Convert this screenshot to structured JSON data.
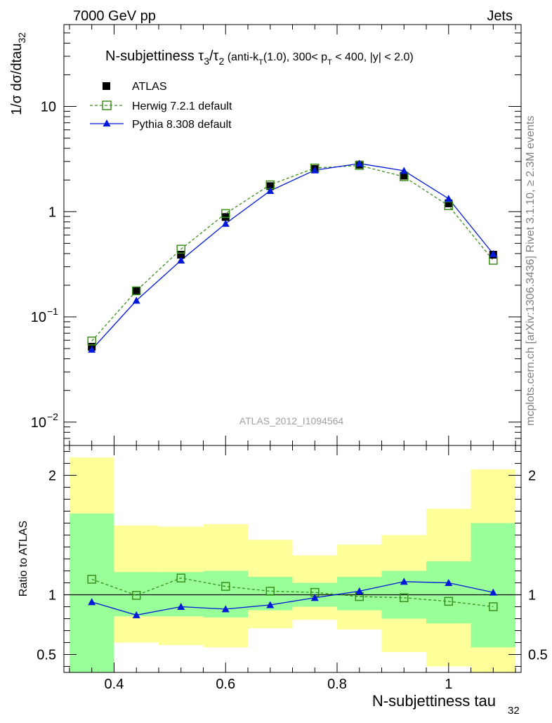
{
  "header": {
    "left": "7000 GeV pp",
    "right": "Jets"
  },
  "side_labels": {
    "rivet": "Rivet 3.1.10, ≥ 2.3M events",
    "mcplots": "mcplots.cern.ch [arXiv:1306.3436]"
  },
  "watermark": "ATLAS_2012_I1094564",
  "main_title": {
    "prefix": "N-subjettiness ",
    "tau": "τ",
    "sub3": "3",
    "slash": "/",
    "sub2": "2",
    "detail_a": " (anti-k",
    "detail_t1": "T",
    "detail_b": "(1.0), 300< p",
    "detail_t2": "T",
    "detail_c": " < 400, |y| < 2.0)"
  },
  "ylabel": {
    "main": "1/σ dσ/dtau",
    "sub": "32"
  },
  "ratio_ylabel": "Ratio to ATLAS",
  "xlabel": {
    "main": "N-subjettiness tau",
    "sub": "32"
  },
  "legend": [
    {
      "name": "ATLAS"
    },
    {
      "name": "Herwig 7.2.1 default"
    },
    {
      "name": "Pythia 8.308 default"
    }
  ],
  "colors": {
    "data": "#000000",
    "herwig": "#3a8f1a",
    "pythia": "#0018d8",
    "band_inner": "#99ff99",
    "band_outer": "#ffff99"
  },
  "chart_data": [
    {
      "type": "line",
      "scale_y": "log",
      "xlim": [
        0.31,
        1.13
      ],
      "ylim": [
        0.006,
        60
      ],
      "x": [
        0.36,
        0.44,
        0.52,
        0.6,
        0.68,
        0.76,
        0.84,
        0.92,
        1.0,
        1.08
      ],
      "bin_edges": [
        0.32,
        0.4,
        0.48,
        0.56,
        0.64,
        0.72,
        0.8,
        0.88,
        0.96,
        1.04,
        1.12
      ],
      "series": [
        {
          "name": "ATLAS",
          "values": [
            0.052,
            0.178,
            0.39,
            0.89,
            1.75,
            2.55,
            2.8,
            2.2,
            1.2,
            0.39
          ]
        },
        {
          "name": "Herwig 7.2.1 default",
          "values": [
            0.059,
            0.177,
            0.44,
            0.96,
            1.8,
            2.6,
            2.75,
            2.15,
            1.14,
            0.345
          ]
        },
        {
          "name": "Pythia 8.308 default",
          "values": [
            0.049,
            0.143,
            0.345,
            0.77,
            1.58,
            2.48,
            2.87,
            2.45,
            1.33,
            0.397
          ]
        }
      ],
      "x_ticks": [
        0.4,
        0.6,
        0.8,
        1.0
      ],
      "y_ticks": [
        "10^-2",
        "10^-1",
        "1",
        "10"
      ]
    },
    {
      "type": "line",
      "ylim": [
        0.35,
        2.25
      ],
      "x": [
        0.36,
        0.44,
        0.52,
        0.6,
        0.68,
        0.76,
        0.84,
        0.92,
        1.0,
        1.08
      ],
      "bin_edges": [
        0.32,
        0.4,
        0.48,
        0.56,
        0.64,
        0.72,
        0.8,
        0.88,
        0.96,
        1.04,
        1.12
      ],
      "series": [
        {
          "name": "Herwig 7.2.1 default",
          "values": [
            1.13,
            0.995,
            1.14,
            1.07,
            1.03,
            1.02,
            0.985,
            0.975,
            0.945,
            0.9
          ]
        },
        {
          "name": "Pythia 8.308 default",
          "values": [
            0.94,
            0.83,
            0.9,
            0.88,
            0.915,
            0.975,
            1.03,
            1.11,
            1.1,
            1.02
          ]
        }
      ],
      "band_inner_low": [
        0.35,
        0.82,
        0.82,
        0.81,
        0.87,
        0.9,
        0.87,
        0.8,
        0.76,
        0.56
      ],
      "band_inner_high": [
        1.68,
        1.19,
        1.19,
        1.2,
        1.15,
        1.1,
        1.15,
        1.2,
        1.28,
        1.6
      ],
      "band_outer_low": [
        0.35,
        0.6,
        0.58,
        0.56,
        0.72,
        0.79,
        0.71,
        0.52,
        0.4,
        0.35
      ],
      "band_outer_high": [
        2.15,
        1.58,
        1.57,
        1.59,
        1.46,
        1.33,
        1.42,
        1.5,
        1.72,
        2.05
      ],
      "y_ticks": [
        0.5,
        1,
        2
      ]
    }
  ]
}
